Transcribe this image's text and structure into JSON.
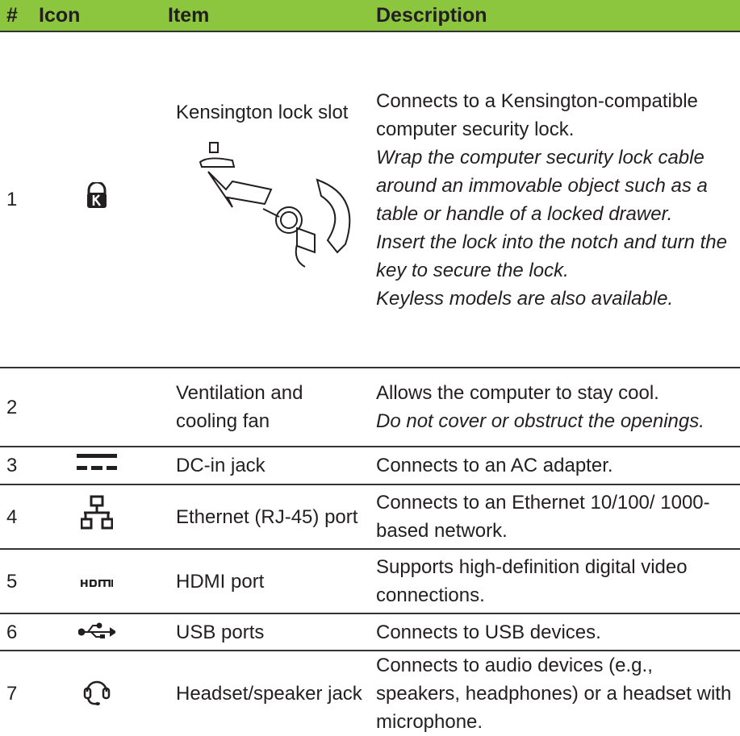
{
  "table": {
    "header": [
      "#",
      "Icon",
      "Item",
      "Description"
    ],
    "rows": [
      {
        "number": "1",
        "item": "Kensington lock slot",
        "description": [
          {
            "text": "Connects to a Kensington-compatible computer security lock.",
            "italic": false
          },
          {
            "text": "Wrap the computer security lock cable around an immovable object such as a table or handle of a locked drawer.",
            "italic": true
          },
          {
            "text": "Insert the lock into the notch and turn the key to secure the lock.",
            "italic": true
          },
          {
            "text": "Keyless models are also available.",
            "italic": true
          }
        ]
      },
      {
        "number": "2",
        "item": "Ventilation and cooling fan",
        "description": [
          {
            "text": "Allows the computer to stay cool.",
            "italic": false
          },
          {
            "text": "Do not cover or obstruct the openings.",
            "italic": true
          }
        ]
      },
      {
        "number": "3",
        "item": "DC-in jack",
        "description": [
          {
            "text": "Connects to an AC adapter.",
            "italic": false
          }
        ]
      },
      {
        "number": "4",
        "item": "Ethernet (RJ-45) port",
        "description": [
          {
            "text": "Connects to an Ethernet 10/100/ 1000-based network.",
            "italic": false
          }
        ]
      },
      {
        "number": "5",
        "item": "HDMI port",
        "description": [
          {
            "text": "Supports high-definition digital video connections.",
            "italic": false
          }
        ]
      },
      {
        "number": "6",
        "item": "USB ports",
        "description": [
          {
            "text": "Connects to USB devices.",
            "italic": false
          }
        ]
      },
      {
        "number": "7",
        "item": "Headset/speaker jack",
        "description": [
          {
            "text": "Connects to audio devices (e.g., speakers, headphones) or a headset with microphone.",
            "italic": false
          }
        ]
      }
    ]
  }
}
